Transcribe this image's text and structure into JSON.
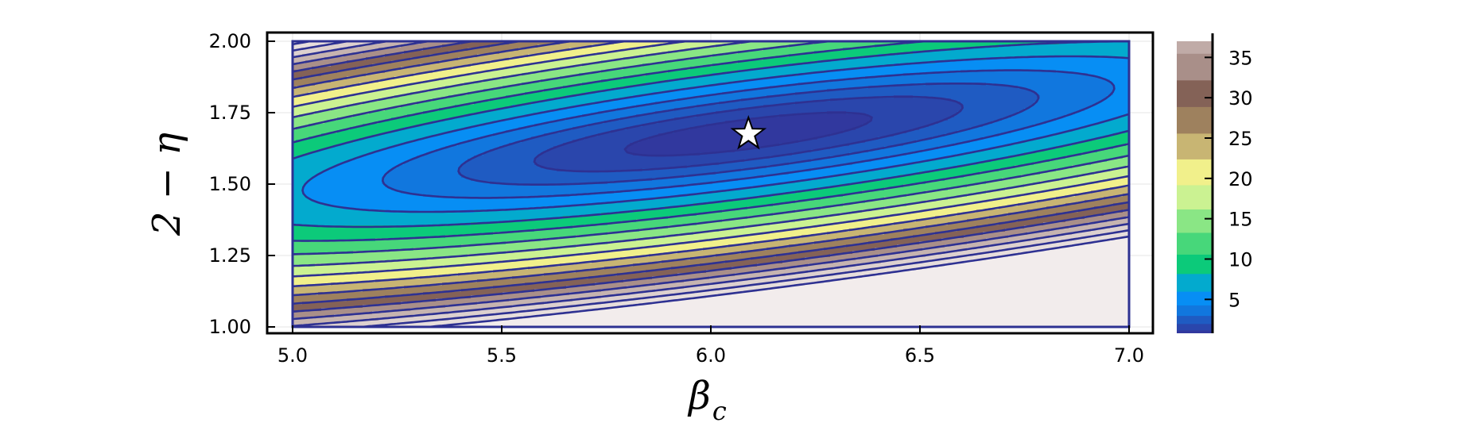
{
  "chart_data": {
    "type": "contour",
    "title": "",
    "xlabel": {
      "main": "β",
      "sub": "c"
    },
    "ylabel": "2 − η",
    "xlim": [
      5.0,
      7.0
    ],
    "ylim": [
      1.0,
      2.0
    ],
    "x_ticks": [
      "5.0",
      "5.5",
      "6.0",
      "6.5",
      "7.0"
    ],
    "y_ticks": [
      "1.00",
      "1.25",
      "1.50",
      "1.75",
      "2.00"
    ],
    "colorbar": {
      "range": [
        0.8,
        37
      ],
      "tick_labels": [
        "5",
        "10",
        "15",
        "20",
        "25",
        "30",
        "35"
      ]
    },
    "contour_levels": [
      1.2,
      2.0,
      3.0,
      4.3,
      6.0,
      8.2,
      10.6,
      13.3,
      16.2,
      19.2,
      22.4,
      25.6,
      28.9,
      32.2,
      35.5,
      38.8,
      42.1,
      45.4
    ],
    "field_model": {
      "minimum_value": 0.8,
      "scale_x_per_unit": 0.5,
      "scale_y_per_unit": 0.25,
      "coef_xx": 0.24,
      "coef_xy": -0.68,
      "coef_yy": 0.92
    },
    "marker": {
      "symbol": "star",
      "x": 6.09,
      "y": 1.675
    },
    "grid": true,
    "colors": {
      "contour_line": "#2e3192",
      "marker_fill": "#ffffff",
      "marker_edge": "#000000",
      "colormap": [
        {
          "v": 0.8,
          "c": "#333399"
        },
        {
          "v": 4.0,
          "c": "#0d7fe6"
        },
        {
          "v": 6.0,
          "c": "#0399ff"
        },
        {
          "v": 9.0,
          "c": "#03c87a"
        },
        {
          "v": 13.0,
          "c": "#5fdc7a"
        },
        {
          "v": 17.0,
          "c": "#c2f294"
        },
        {
          "v": 21.0,
          "c": "#f3f08a"
        },
        {
          "v": 25.0,
          "c": "#b9a16b"
        },
        {
          "v": 30.0,
          "c": "#7e5a4f"
        },
        {
          "v": 35.0,
          "c": "#b69f9a"
        },
        {
          "v": 40.0,
          "c": "#dccfcd"
        },
        {
          "v": 48.0,
          "c": "#f4eeee"
        }
      ]
    }
  }
}
